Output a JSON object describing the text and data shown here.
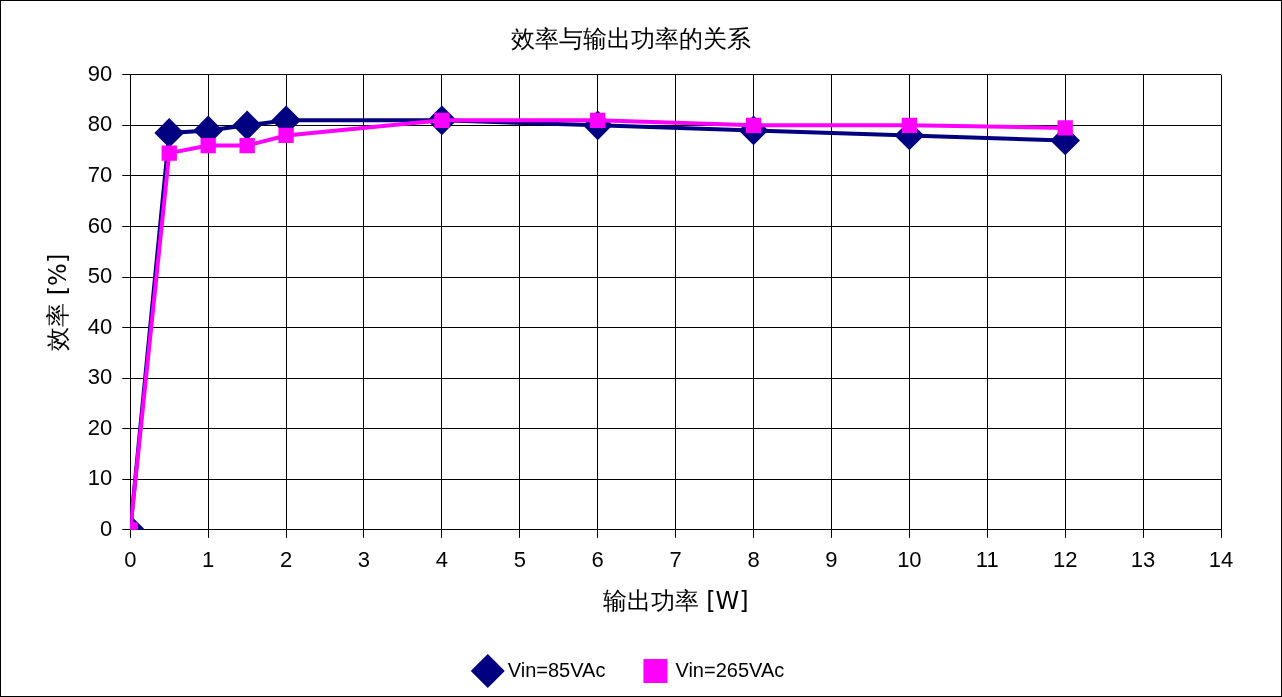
{
  "chart_data": {
    "type": "line",
    "title": "效率与输出功率的关系",
    "xlabel": "输出功率 [W]",
    "ylabel": "效率 [%]",
    "xlim": [
      0,
      14
    ],
    "xticks": [
      0,
      1,
      2,
      3,
      4,
      5,
      6,
      7,
      8,
      9,
      10,
      11,
      12,
      13,
      14
    ],
    "ylim": [
      0,
      90
    ],
    "yticks": [
      0,
      10,
      20,
      30,
      40,
      50,
      60,
      70,
      80,
      90
    ],
    "grid": true,
    "legend": "bottom",
    "line_style": "solid",
    "series": [
      {
        "name": "Vin=85VAc",
        "color": "#000080",
        "marker": "diamond",
        "x": [
          0,
          0.5,
          1,
          1.5,
          2,
          4,
          6,
          8,
          10,
          12
        ],
        "values": [
          0,
          78.5,
          79,
          80,
          81,
          81,
          80,
          79,
          78,
          77
        ]
      },
      {
        "name": "Vin=265VAc",
        "color": "#ff00ff",
        "marker": "square",
        "x": [
          0,
          0.5,
          1,
          1.5,
          2,
          4,
          6,
          8,
          10,
          12
        ],
        "values": [
          0,
          74.5,
          76,
          76,
          78,
          81,
          81,
          80,
          80,
          79.5
        ]
      }
    ]
  }
}
